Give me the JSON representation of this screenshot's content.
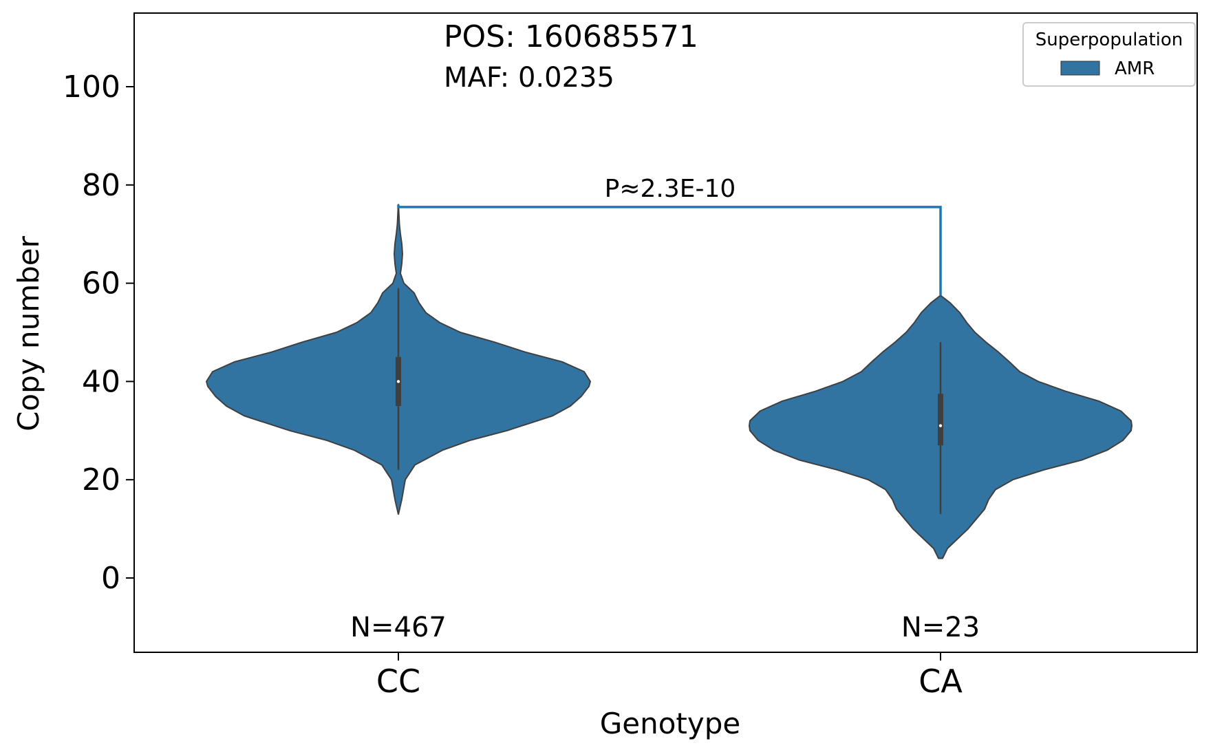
{
  "chart_data": {
    "type": "violin",
    "annotations": {
      "pos": "POS: 160685571",
      "maf": "MAF: 0.0235",
      "pvalue": "P≈2.3E-10"
    },
    "xlabel": "Genotype",
    "ylabel": "Copy number",
    "ylim": [
      -15,
      115
    ],
    "yticks": [
      0,
      20,
      40,
      60,
      80,
      100
    ],
    "categories": [
      "CC",
      "CA"
    ],
    "legend": {
      "title": "Superpopulation",
      "entries": [
        "AMR"
      ],
      "placement": "top-right"
    },
    "series_color": "#3274a1",
    "bracket": {
      "from": "CC",
      "to": "CA",
      "y": 75.5
    },
    "groups": [
      {
        "category": "CC",
        "n_label": "N=467",
        "min": 13,
        "max": 76,
        "box": {
          "q1": 35,
          "median": 40,
          "q3": 45
        },
        "whisker": [
          22,
          59
        ],
        "density_halfwidth": [
          [
            13,
            0.1
          ],
          [
            16,
            5
          ],
          [
            20,
            10
          ],
          [
            23,
            24
          ],
          [
            26,
            64
          ],
          [
            28,
            104
          ],
          [
            30,
            158
          ],
          [
            33,
            224
          ],
          [
            35,
            250
          ],
          [
            37,
            266
          ],
          [
            39,
            277
          ],
          [
            40,
            279
          ],
          [
            42,
            270
          ],
          [
            44,
            238
          ],
          [
            46,
            184
          ],
          [
            48,
            140
          ],
          [
            50,
            90
          ],
          [
            52,
            60
          ],
          [
            54,
            40
          ],
          [
            56,
            30
          ],
          [
            58,
            23
          ],
          [
            60,
            8
          ],
          [
            62,
            3
          ],
          [
            64,
            5
          ],
          [
            66,
            6
          ],
          [
            68,
            5
          ],
          [
            70,
            3
          ],
          [
            72,
            1.5
          ],
          [
            74,
            0.8
          ],
          [
            76,
            0.1
          ]
        ]
      },
      {
        "category": "CA",
        "n_label": "N=23",
        "min": 4,
        "max": 57.5,
        "box": {
          "q1": 27,
          "median": 31,
          "q3": 37.5
        },
        "whisker": [
          13,
          48
        ],
        "density_halfwidth": [
          [
            4,
            3
          ],
          [
            6,
            10
          ],
          [
            8,
            25
          ],
          [
            10,
            40
          ],
          [
            12,
            52
          ],
          [
            14,
            64
          ],
          [
            16,
            70
          ],
          [
            18,
            80
          ],
          [
            20,
            105
          ],
          [
            22,
            150
          ],
          [
            24,
            205
          ],
          [
            26,
            242
          ],
          [
            28,
            265
          ],
          [
            30,
            277
          ],
          [
            31,
            278
          ],
          [
            32,
            277
          ],
          [
            34,
            262
          ],
          [
            36,
            230
          ],
          [
            38,
            182
          ],
          [
            40,
            142
          ],
          [
            42,
            115
          ],
          [
            44,
            100
          ],
          [
            46,
            84
          ],
          [
            48,
            66
          ],
          [
            50,
            50
          ],
          [
            52,
            38
          ],
          [
            54,
            28
          ],
          [
            56,
            14
          ],
          [
            57.5,
            0.1
          ]
        ]
      }
    ]
  }
}
